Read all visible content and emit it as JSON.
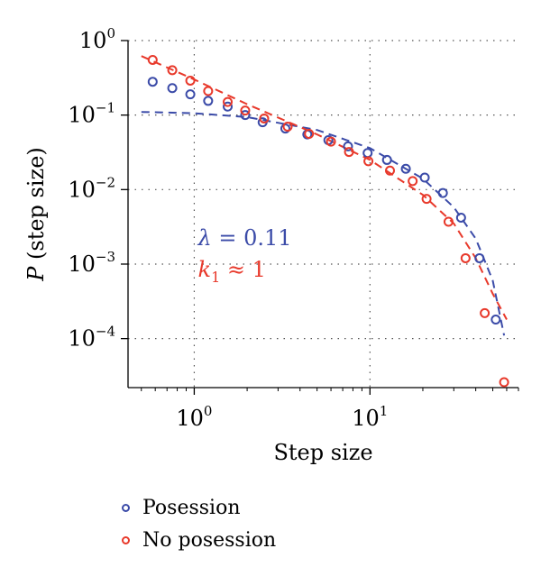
{
  "chart_data": {
    "type": "scatter",
    "xscale": "log",
    "yscale": "log",
    "xlim": [
      0.42,
      70
    ],
    "ylim": [
      2.2e-05,
      1
    ],
    "grid": true,
    "legend_position": "below",
    "xlabel": "Step size",
    "ylabel_italic": "P",
    "ylabel_rest": " (step size)",
    "x_ticks": [
      {
        "base": "10",
        "exp": "0",
        "value": 1
      },
      {
        "base": "10",
        "exp": "1",
        "value": 10
      }
    ],
    "y_ticks": [
      {
        "base": "10",
        "exp": "0",
        "value": 1
      },
      {
        "base": "10",
        "exp": "−1",
        "value": 0.1
      },
      {
        "base": "10",
        "exp": "−2",
        "value": 0.01
      },
      {
        "base": "10",
        "exp": "−3",
        "value": 0.001
      },
      {
        "base": "10",
        "exp": "−4",
        "value": 0.0001
      }
    ],
    "series": [
      {
        "name": "Posession",
        "color": "#3b4ba8",
        "points": [
          [
            0.58,
            0.28
          ],
          [
            0.75,
            0.23
          ],
          [
            0.95,
            0.19
          ],
          [
            1.2,
            0.155
          ],
          [
            1.55,
            0.13
          ],
          [
            1.95,
            0.1
          ],
          [
            2.45,
            0.08
          ],
          [
            3.3,
            0.066
          ],
          [
            4.4,
            0.055
          ],
          [
            5.8,
            0.046
          ],
          [
            7.5,
            0.038
          ],
          [
            9.7,
            0.031
          ],
          [
            12.5,
            0.025
          ],
          [
            16,
            0.019
          ],
          [
            20.5,
            0.0145
          ],
          [
            26,
            0.009
          ],
          [
            33,
            0.0042
          ],
          [
            42,
            0.0012
          ],
          [
            52,
            0.00018
          ]
        ]
      },
      {
        "name": "No posession",
        "color": "#e8392b",
        "points": [
          [
            0.58,
            0.55
          ],
          [
            0.75,
            0.4
          ],
          [
            0.95,
            0.29
          ],
          [
            1.2,
            0.21
          ],
          [
            1.55,
            0.15
          ],
          [
            1.95,
            0.115
          ],
          [
            2.5,
            0.09
          ],
          [
            3.4,
            0.07
          ],
          [
            4.5,
            0.056
          ],
          [
            6,
            0.044
          ],
          [
            7.6,
            0.032
          ],
          [
            9.8,
            0.024
          ],
          [
            13,
            0.018
          ],
          [
            17.5,
            0.013
          ],
          [
            21,
            0.0075
          ],
          [
            28,
            0.0037
          ],
          [
            35,
            0.0012
          ],
          [
            45,
            0.00022
          ],
          [
            58,
            2.6e-05
          ]
        ]
      }
    ],
    "fits": [
      {
        "series": "Posession",
        "color": "#3b4ba8",
        "points": [
          [
            0.5,
            0.11
          ],
          [
            1,
            0.106
          ],
          [
            2,
            0.094
          ],
          [
            5,
            0.063
          ],
          [
            10,
            0.036
          ],
          [
            20,
            0.014
          ],
          [
            30,
            0.0058
          ],
          [
            40,
            0.0022
          ],
          [
            50,
            0.0006
          ],
          [
            58,
            0.00011
          ]
        ]
      },
      {
        "series": "No posession",
        "color": "#e8392b",
        "points": [
          [
            0.5,
            0.62
          ],
          [
            1,
            0.3
          ],
          [
            2,
            0.14
          ],
          [
            5,
            0.055
          ],
          [
            10,
            0.025
          ],
          [
            20,
            0.0085
          ],
          [
            30,
            0.0035
          ],
          [
            40,
            0.0012
          ],
          [
            50,
            0.0004
          ],
          [
            60,
            0.00018
          ]
        ]
      }
    ],
    "annotations": [
      {
        "prefix": "λ",
        "text": " = 0.11",
        "color": "#3b4ba8",
        "x": 1.05,
        "y": 0.0018
      },
      {
        "prefix": "k",
        "sub": "1",
        "text": " ≈ 1",
        "color": "#e8392b",
        "x": 1.05,
        "y": 0.00068
      }
    ]
  }
}
